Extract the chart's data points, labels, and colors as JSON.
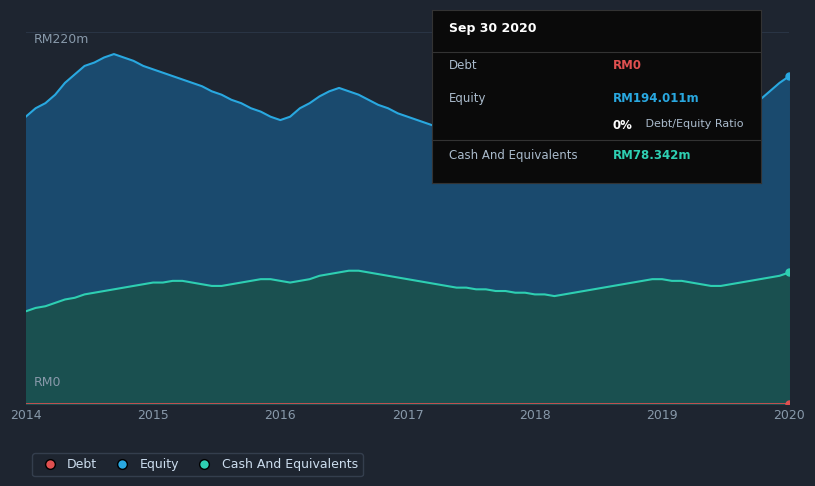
{
  "background_color": "#1e2530",
  "chart_bg_color": "#1e2530",
  "tooltip": {
    "date": "Sep 30 2020",
    "debt_label": "Debt",
    "debt_value": "RM0",
    "equity_label": "Equity",
    "equity_value": "RM194.011m",
    "ratio_value": "0% Debt/Equity Ratio",
    "cash_label": "Cash And Equivalents",
    "cash_value": "RM78.342m"
  },
  "y_label_top": "RM220m",
  "y_label_bottom": "RM0",
  "x_labels": [
    "2014",
    "2015",
    "2016",
    "2017",
    "2018",
    "2019",
    "2020"
  ],
  "equity_color": "#29a8e0",
  "equity_fill": "#1a4a6e",
  "cash_color": "#2ecfb2",
  "cash_fill": "#1a5050",
  "debt_color": "#e05050",
  "grid_color": "#2a3545",
  "legend": [
    {
      "label": "Debt",
      "color": "#e05050"
    },
    {
      "label": "Equity",
      "color": "#29a8e0"
    },
    {
      "label": "Cash And Equivalents",
      "color": "#2ecfb2"
    }
  ],
  "equity_y_values": [
    170,
    175,
    178,
    183,
    190,
    195,
    200,
    202,
    205,
    207,
    205,
    203,
    200,
    198,
    196,
    194,
    192,
    190,
    188,
    185,
    183,
    180,
    178,
    175,
    173,
    170,
    168,
    170,
    175,
    178,
    182,
    185,
    187,
    185,
    183,
    180,
    177,
    175,
    172,
    170,
    168,
    166,
    164,
    162,
    160,
    158,
    156,
    155,
    153,
    152,
    150,
    148,
    146,
    144,
    143,
    145,
    148,
    150,
    152,
    155,
    157,
    160,
    162,
    165,
    167,
    169,
    171,
    172,
    168,
    162,
    158,
    160,
    165,
    170,
    175,
    180,
    185,
    190,
    194
  ],
  "cash_y_values": [
    55,
    57,
    58,
    60,
    62,
    63,
    65,
    66,
    67,
    68,
    69,
    70,
    71,
    72,
    72,
    73,
    73,
    72,
    71,
    70,
    70,
    71,
    72,
    73,
    74,
    74,
    73,
    72,
    73,
    74,
    76,
    77,
    78,
    79,
    79,
    78,
    77,
    76,
    75,
    74,
    73,
    72,
    71,
    70,
    69,
    69,
    68,
    68,
    67,
    67,
    66,
    66,
    65,
    65,
    64,
    65,
    66,
    67,
    68,
    69,
    70,
    71,
    72,
    73,
    74,
    74,
    73,
    73,
    72,
    71,
    70,
    70,
    71,
    72,
    73,
    74,
    75,
    76,
    78
  ],
  "debt_y_values": [
    0.5,
    0.5,
    0.5,
    0.5,
    0.5,
    0.5,
    0.5,
    0.5,
    0.5,
    0.5,
    0.5,
    0.5,
    0.5,
    0.5,
    0.5,
    0.5,
    0.5,
    0.5,
    0.5,
    0.5,
    0.5,
    0.5,
    0.5,
    0.5,
    0.5,
    0.5,
    0.5,
    0.5,
    0.5,
    0.5,
    0.5,
    0.5,
    0.5,
    0.5,
    0.5,
    0.5,
    0.5,
    0.5,
    0.5,
    0.5,
    0.5,
    0.5,
    0.5,
    0.5,
    0.5,
    0.5,
    0.5,
    0.5,
    0.5,
    0.5,
    0.5,
    0.5,
    0.5,
    0.5,
    0.5,
    0.5,
    0.5,
    0.5,
    0.5,
    0.5,
    0.5,
    0.5,
    0.5,
    0.5,
    0.5,
    0.5,
    0.5,
    0.5,
    0.5,
    0.5,
    0.5,
    0.5,
    0.5,
    0.5,
    0.5,
    0.5,
    0.5,
    0.5,
    0.5
  ],
  "ylim": [
    0,
    230
  ],
  "tooltip_bg": "#0a0a0a",
  "tooltip_border": "#333333"
}
